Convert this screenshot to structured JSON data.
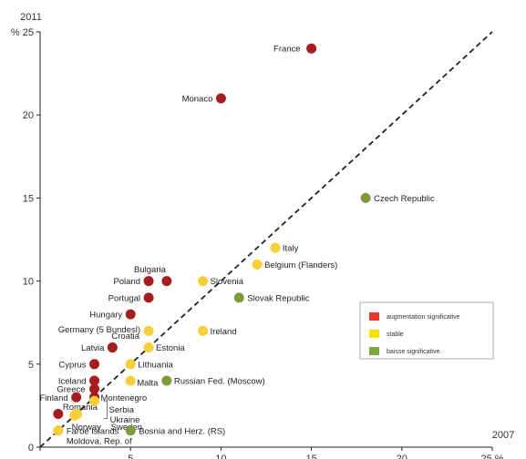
{
  "chart_data": {
    "type": "scatter",
    "xlabel": "2007",
    "ylabel": "2011",
    "x_unit": "%",
    "y_unit": "%",
    "xlim": [
      0,
      25
    ],
    "ylim": [
      0,
      25
    ],
    "x_ticks": [
      0,
      5,
      10,
      15,
      20,
      25
    ],
    "y_ticks": [
      0,
      5,
      10,
      15,
      20,
      25
    ],
    "x_tick_labels": [
      "0",
      "5",
      "10",
      "15",
      "20",
      "25 %"
    ],
    "y_tick_labels": [
      "0",
      "5",
      "10",
      "15",
      "20",
      "% 25"
    ],
    "reference_line": "y = x (dashed)",
    "grid": false,
    "legend": {
      "placement": "right",
      "entries": [
        {
          "label": "augmentation significative",
          "color": "#e8362b"
        },
        {
          "label": "stable",
          "color": "#f5e400"
        },
        {
          "label": "baisse significative",
          "color": "#7aa83c"
        }
      ]
    },
    "category_colors": {
      "increase": "#a51d1d",
      "stable": "#f7cf3a",
      "decrease": "#7f9a3a"
    },
    "points": [
      {
        "label": "France",
        "x": 15,
        "y": 24,
        "category": "increase"
      },
      {
        "label": "Monaco",
        "x": 10,
        "y": 21,
        "category": "increase"
      },
      {
        "label": "Czech Republic",
        "x": 18,
        "y": 15,
        "category": "decrease"
      },
      {
        "label": "Italy",
        "x": 13,
        "y": 12,
        "category": "stable"
      },
      {
        "label": "Belgium (Flanders)",
        "x": 12,
        "y": 11,
        "category": "stable"
      },
      {
        "label": "Bulgaria",
        "x": 7,
        "y": 10,
        "category": "increase"
      },
      {
        "label": "Poland",
        "x": 6,
        "y": 10,
        "category": "increase"
      },
      {
        "label": "Slovenia",
        "x": 9,
        "y": 10,
        "category": "stable"
      },
      {
        "label": "Slovak Republic",
        "x": 11,
        "y": 9,
        "category": "decrease"
      },
      {
        "label": "Portugal",
        "x": 6,
        "y": 9,
        "category": "increase"
      },
      {
        "label": "Hungary",
        "x": 5,
        "y": 8,
        "category": "increase"
      },
      {
        "label": "Germany (5 Bundesl)",
        "x": 6,
        "y": 7,
        "category": "stable"
      },
      {
        "label": "Ireland",
        "x": 9,
        "y": 7,
        "category": "stable"
      },
      {
        "label": "Croatia",
        "x": 6,
        "y": 6,
        "category": "stable"
      },
      {
        "label": "Latvia",
        "x": 4,
        "y": 6,
        "category": "increase"
      },
      {
        "label": "Estonia",
        "x": 6,
        "y": 6,
        "category": "stable"
      },
      {
        "label": "Cyprus",
        "x": 3,
        "y": 5,
        "category": "increase"
      },
      {
        "label": "Lithuania",
        "x": 5,
        "y": 5,
        "category": "stable"
      },
      {
        "label": "Iceland",
        "x": 3,
        "y": 4,
        "category": "increase"
      },
      {
        "label": "Malta",
        "x": 5,
        "y": 4,
        "category": "stable"
      },
      {
        "label": "Russian Fed. (Moscow)",
        "x": 7,
        "y": 4,
        "category": "decrease"
      },
      {
        "label": "Greece",
        "x": 3,
        "y": 3.5,
        "category": "increase"
      },
      {
        "label": "Montenegro",
        "x": 3,
        "y": 3,
        "category": "increase"
      },
      {
        "label": "Finland",
        "x": 2,
        "y": 3,
        "category": "increase"
      },
      {
        "label": "Serbia",
        "x": 3,
        "y": 3,
        "category": "stable"
      },
      {
        "label": "Romania",
        "x": 1,
        "y": 2,
        "category": "increase"
      },
      {
        "label": "Ukraine",
        "x": 2,
        "y": 2,
        "category": "stable"
      },
      {
        "label": "Sweden",
        "x": 2,
        "y": 2,
        "category": "stable"
      },
      {
        "label": "Norway",
        "x": 2,
        "y": 2,
        "category": "stable"
      },
      {
        "label": "Bosnia and Herz. (RS)",
        "x": 5,
        "y": 1,
        "category": "decrease"
      },
      {
        "label": "Faroe Islands",
        "x": 1,
        "y": 1,
        "category": "stable"
      },
      {
        "label": "Moldova, Rep. of",
        "x": 1,
        "y": 1,
        "category": "stable"
      }
    ]
  }
}
